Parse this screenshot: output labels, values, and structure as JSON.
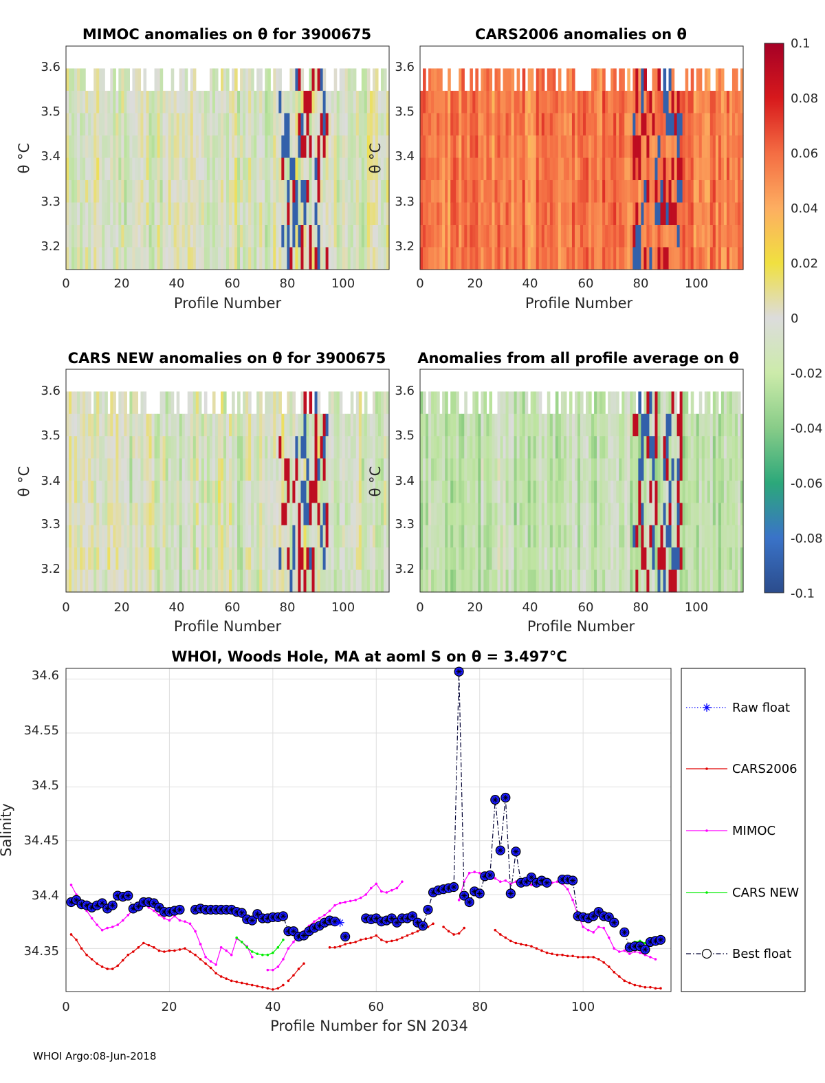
{
  "footer": "WHOI Argo:08-Jun-2018",
  "colorbar": {
    "ticks": [
      "0.1",
      "0.08",
      "0.06",
      "0.04",
      "0.02",
      "0",
      "-0.02",
      "-0.04",
      "-0.06",
      "-0.08",
      "-0.1"
    ],
    "range": [
      -0.1,
      0.1
    ]
  },
  "panels": [
    {
      "title": "MIMOC anomalies on θ  for 3900675",
      "xlabel": "Profile Number",
      "ylabel": "θ °C",
      "xticks": [
        "0",
        "20",
        "40",
        "60",
        "80",
        "100"
      ],
      "yticks": [
        "3.6",
        "3.5",
        "3.4",
        "3.3",
        "3.2"
      ],
      "seed": 11,
      "bias": -0.004,
      "spread": 0.03
    },
    {
      "title": "CARS2006 anomalies on θ",
      "xlabel": "Profile Number",
      "ylabel": "θ °C",
      "xticks": [
        "0",
        "20",
        "40",
        "60",
        "80",
        "100"
      ],
      "yticks": [
        "3.6",
        "3.5",
        "3.4",
        "3.3",
        "3.2"
      ],
      "seed": 23,
      "bias": 0.055,
      "spread": 0.025
    },
    {
      "title": "CARS NEW anomalies on θ for 3900675",
      "xlabel": "Profile Number",
      "ylabel": "θ °C",
      "xticks": [
        "0",
        "20",
        "40",
        "60",
        "80",
        "100"
      ],
      "yticks": [
        "3.6",
        "3.5",
        "3.4",
        "3.3",
        "3.2"
      ],
      "seed": 37,
      "bias": -0.005,
      "spread": 0.03
    },
    {
      "title": "Anomalies from all profile average on θ",
      "xlabel": "Profile Number",
      "ylabel": "θ °C",
      "xticks": [
        "0",
        "20",
        "40",
        "60",
        "80",
        "100"
      ],
      "yticks": [
        "3.6",
        "3.5",
        "3.4",
        "3.3",
        "3.2"
      ],
      "seed": 53,
      "bias": -0.015,
      "spread": 0.025
    }
  ],
  "chart_data": {
    "type": "line",
    "title": "WHOI, Woods Hole, MA at aoml S on θ = 3.497°C",
    "xlabel": "Profile Number for SN 2034",
    "ylabel": "Salinity",
    "xlim": [
      0,
      117
    ],
    "ylim": [
      34.31,
      34.61
    ],
    "xticks": [
      "0",
      "20",
      "40",
      "60",
      "80",
      "100"
    ],
    "yticks": [
      "34.6",
      "34.55",
      "34.5",
      "34.45",
      "34.4",
      "34.35"
    ],
    "series": [
      {
        "name": "Raw float",
        "color": "#0000ff",
        "style": "dotted",
        "x": [
          53
        ],
        "y": [
          34.374
        ]
      },
      {
        "name": "CARS2006",
        "color": "#e00000",
        "style": "solid",
        "x": [
          1,
          2,
          3,
          4,
          5,
          6,
          7,
          8,
          9,
          10,
          11,
          12,
          13,
          14,
          15,
          16,
          17,
          18,
          19,
          20,
          21,
          22,
          23,
          24,
          25,
          26,
          27,
          28,
          29,
          30,
          31,
          32,
          33,
          34,
          35,
          36,
          37,
          38,
          39,
          40,
          41,
          42,
          null,
          43,
          44,
          45,
          46,
          null,
          51,
          52,
          53,
          54,
          55,
          56,
          57,
          58,
          59,
          60,
          61,
          62,
          63,
          64,
          65,
          66,
          67,
          68,
          69,
          70,
          71,
          null,
          73,
          74,
          75,
          76,
          77,
          null,
          83,
          84,
          85,
          86,
          87,
          88,
          89,
          90,
          91,
          92,
          93,
          94,
          95,
          96,
          97,
          98,
          99,
          100,
          101,
          102,
          103,
          104,
          105,
          106,
          107,
          108,
          109,
          110,
          111,
          112,
          113,
          114,
          115
        ],
        "y": [
          34.363,
          34.358,
          34.35,
          34.344,
          34.34,
          34.336,
          34.333,
          34.331,
          34.331,
          34.334,
          34.339,
          34.344,
          34.347,
          34.351,
          34.355,
          34.353,
          34.351,
          34.348,
          34.347,
          34.348,
          34.348,
          34.349,
          34.35,
          34.347,
          34.344,
          34.34,
          34.336,
          34.332,
          34.327,
          34.324,
          34.322,
          34.32,
          34.319,
          34.318,
          34.317,
          34.316,
          34.315,
          34.314,
          34.313,
          34.312,
          34.313,
          34.316,
          null,
          34.32,
          34.325,
          34.331,
          34.336,
          null,
          34.351,
          34.351,
          34.352,
          34.354,
          34.355,
          34.356,
          34.358,
          34.359,
          34.36,
          34.362,
          34.358,
          34.356,
          34.357,
          34.358,
          34.36,
          34.362,
          34.364,
          34.366,
          34.368,
          34.37,
          34.373,
          null,
          34.37,
          34.366,
          34.363,
          34.364,
          34.369,
          null,
          34.367,
          34.363,
          34.36,
          34.357,
          34.355,
          34.354,
          34.353,
          34.352,
          34.35,
          34.348,
          34.346,
          34.345,
          34.344,
          34.344,
          34.343,
          34.343,
          34.342,
          34.342,
          34.342,
          34.342,
          34.34,
          34.337,
          34.333,
          34.328,
          34.324,
          34.32,
          34.318,
          34.316,
          34.315,
          34.314,
          34.314,
          34.313,
          34.313
        ]
      },
      {
        "name": "MIMOC",
        "color": "#ff00ff",
        "style": "solid",
        "x": [
          1,
          2,
          3,
          4,
          5,
          6,
          7,
          8,
          9,
          10,
          11,
          12,
          13,
          14,
          15,
          16,
          17,
          18,
          19,
          20,
          21,
          22,
          23,
          24,
          25,
          26,
          27,
          28,
          29,
          30,
          31,
          32,
          33,
          34,
          35,
          36,
          null,
          39,
          40,
          41,
          42,
          43,
          44,
          45,
          46,
          47,
          48,
          49,
          50,
          51,
          52,
          53,
          54,
          55,
          56,
          57,
          58,
          59,
          60,
          61,
          62,
          63,
          64,
          65,
          null,
          76,
          77,
          78,
          79,
          80,
          81,
          82,
          83,
          84,
          85,
          86,
          87,
          88,
          89,
          90,
          91,
          92,
          93,
          94,
          95,
          96,
          97,
          98,
          99,
          100,
          101,
          102,
          103,
          104,
          105,
          106,
          107,
          108,
          109,
          110,
          111,
          112,
          113,
          114
        ],
        "y": [
          34.409,
          34.4,
          34.392,
          34.385,
          34.378,
          34.372,
          34.367,
          34.369,
          34.37,
          34.372,
          34.376,
          34.381,
          34.386,
          34.39,
          34.391,
          34.388,
          34.385,
          34.381,
          34.378,
          34.376,
          34.38,
          34.376,
          34.375,
          34.373,
          34.366,
          34.354,
          34.342,
          34.338,
          34.335,
          34.351,
          34.348,
          34.344,
          34.359,
          34.356,
          34.352,
          34.342,
          null,
          34.33,
          34.33,
          34.333,
          34.34,
          34.35,
          34.356,
          34.362,
          34.366,
          34.371,
          34.375,
          34.378,
          34.381,
          34.385,
          34.39,
          34.392,
          34.393,
          34.394,
          34.395,
          34.397,
          34.4,
          34.406,
          34.41,
          34.403,
          34.402,
          34.404,
          34.406,
          34.412,
          null,
          34.395,
          34.412,
          34.42,
          34.421,
          34.42,
          34.419,
          34.418,
          34.415,
          34.412,
          34.413,
          34.41,
          34.412,
          34.409,
          34.41,
          34.409,
          34.411,
          34.41,
          34.409,
          34.411,
          34.412,
          34.41,
          34.405,
          34.395,
          34.381,
          34.37,
          34.367,
          34.365,
          34.37,
          34.369,
          34.36,
          34.35,
          34.347,
          34.348,
          34.345,
          34.347,
          34.346,
          34.344,
          34.342,
          34.34
        ]
      },
      {
        "name": "CARS NEW",
        "color": "#00ee00",
        "style": "solid",
        "x": [
          33,
          34,
          35,
          36,
          37,
          38,
          39,
          40,
          41,
          42,
          null,
          110,
          111,
          112
        ],
        "y": [
          34.36,
          34.356,
          34.351,
          34.347,
          34.345,
          34.344,
          34.344,
          34.346,
          34.351,
          34.358,
          null,
          34.356,
          34.357,
          34.355
        ]
      },
      {
        "name": "Best float",
        "color": "#000033",
        "style": "dashdot",
        "x": [
          1,
          2,
          3,
          4,
          5,
          6,
          7,
          8,
          9,
          10,
          11,
          12,
          13,
          14,
          15,
          16,
          17,
          18,
          19,
          20,
          21,
          22,
          null,
          25,
          26,
          27,
          28,
          29,
          30,
          31,
          32,
          33,
          34,
          35,
          36,
          37,
          38,
          39,
          40,
          41,
          42,
          43,
          44,
          45,
          46,
          47,
          48,
          49,
          50,
          51,
          52,
          null,
          54,
          null,
          58,
          59,
          60,
          61,
          62,
          63,
          64,
          65,
          66,
          67,
          68,
          69,
          70,
          71,
          72,
          73,
          74,
          75,
          76,
          77,
          78,
          79,
          80,
          81,
          82,
          83,
          84,
          85,
          86,
          87,
          88,
          89,
          90,
          91,
          92,
          93,
          null,
          96,
          97,
          98,
          99,
          100,
          101,
          102,
          103,
          104,
          105,
          106,
          null,
          108,
          109,
          110,
          111,
          112,
          113,
          114,
          115
        ],
        "y": [
          34.393,
          34.395,
          34.391,
          34.39,
          34.388,
          34.39,
          34.392,
          34.387,
          34.39,
          34.399,
          34.398,
          34.399,
          34.387,
          34.389,
          34.393,
          34.393,
          34.392,
          34.388,
          34.384,
          34.384,
          34.385,
          34.386,
          null,
          34.386,
          34.387,
          34.386,
          34.386,
          34.386,
          34.386,
          34.386,
          34.386,
          34.384,
          34.383,
          34.377,
          34.376,
          34.382,
          34.378,
          34.378,
          34.379,
          34.379,
          34.38,
          34.366,
          34.366,
          34.361,
          34.362,
          34.366,
          34.369,
          34.371,
          34.374,
          34.376,
          34.375,
          null,
          34.361,
          null,
          34.378,
          34.377,
          34.378,
          34.375,
          34.376,
          34.378,
          34.374,
          34.378,
          34.378,
          34.38,
          34.374,
          34.371,
          34.386,
          34.402,
          34.404,
          34.405,
          34.406,
          34.407,
          34.607,
          34.399,
          34.393,
          34.403,
          34.401,
          34.417,
          34.418,
          34.488,
          34.441,
          34.49,
          34.401,
          34.44,
          34.411,
          34.412,
          34.416,
          34.411,
          34.413,
          34.411,
          null,
          34.414,
          34.414,
          34.413,
          34.38,
          34.379,
          34.378,
          34.38,
          34.384,
          34.38,
          34.379,
          34.374,
          null,
          34.365,
          34.351,
          34.352,
          34.352,
          34.349,
          34.356,
          34.357,
          34.358
        ]
      }
    ]
  }
}
